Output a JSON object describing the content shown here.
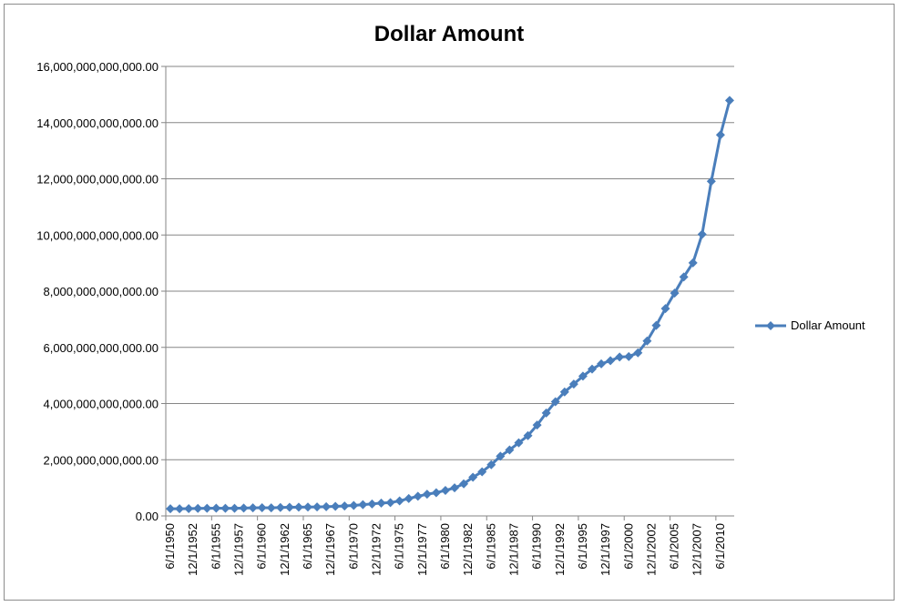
{
  "chart_data": {
    "type": "line",
    "title": "Dollar Amount",
    "xlabel": "",
    "ylabel": "",
    "ylim": [
      0,
      16000000000000
    ],
    "y_ticks": [
      "0.00",
      "2,000,000,000,000.00",
      "4,000,000,000,000.00",
      "6,000,000,000,000.00",
      "8,000,000,000,000.00",
      "10,000,000,000,000.00",
      "12,000,000,000,000.00",
      "14,000,000,000,000.00",
      "16,000,000,000,000.00"
    ],
    "x_tick_labels": [
      "6/1/1950",
      "12/1/1952",
      "6/1/1955",
      "12/1/1957",
      "6/1/1960",
      "12/1/1962",
      "6/1/1965",
      "12/1/1967",
      "6/1/1970",
      "12/1/1972",
      "6/1/1975",
      "12/1/1977",
      "6/1/1980",
      "12/1/1982",
      "6/1/1985",
      "12/1/1987",
      "6/1/1990",
      "12/1/1992",
      "6/1/1995",
      "12/1/1997",
      "6/1/2000",
      "12/1/2002",
      "6/1/2005",
      "12/1/2007",
      "6/1/2010"
    ],
    "grid": "horizontal",
    "legend": "right",
    "series": [
      {
        "name": "Dollar Amount",
        "color": "#4a7ebb",
        "values": [
          257000000000,
          255000000000,
          259000000000,
          266000000000,
          271000000000,
          274000000000,
          273000000000,
          272000000000,
          280000000000,
          287000000000,
          291000000000,
          289000000000,
          298000000000,
          306000000000,
          312000000000,
          317000000000,
          321000000000,
          328000000000,
          341000000000,
          354000000000,
          371000000000,
          399000000000,
          427000000000,
          458000000000,
          475000000000,
          533000000000,
          620000000000,
          699000000000,
          772000000000,
          827000000000,
          908000000000,
          998000000000,
          1143000000000,
          1377000000000,
          1572000000000,
          1823000000000,
          2125000000000,
          2350000000000,
          2602000000000,
          2857000000000,
          3233000000000,
          3665000000000,
          4065000000000,
          4411000000000,
          4693000000000,
          4974000000000,
          5225000000000,
          5413000000000,
          5526000000000,
          5656000000000,
          5674000000000,
          5807000000000,
          6228000000000,
          6783000000000,
          7379000000000,
          7933000000000,
          8507000000000,
          9008000000000,
          10025000000000,
          11910000000000,
          13562000000000,
          14790000000000
        ]
      }
    ]
  }
}
